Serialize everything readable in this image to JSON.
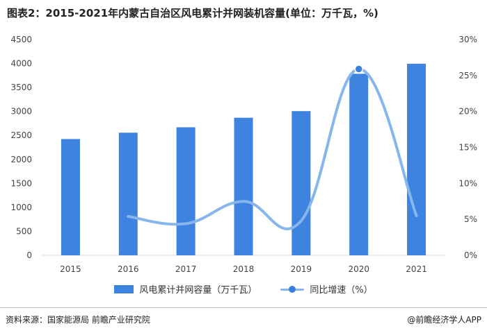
{
  "title": "图表2：2015-2021年内蒙古自治区风电累计并网装机容量(单位：万千瓦，%)",
  "source": "资料来源：国家能源局 前瞻产业研究院",
  "brand": "@前瞻经济学人APP",
  "colors": {
    "bar": "#3f83e0",
    "line": "#86b6ec",
    "marker": "#3a7fdc",
    "axis_text": "#444444",
    "axis_line": "#d9d9d9"
  },
  "chart_data": {
    "type": "bar",
    "categories": [
      "2015",
      "2016",
      "2017",
      "2018",
      "2019",
      "2020",
      "2021"
    ],
    "series": [
      {
        "name": "风电累计并网容量（万千瓦）",
        "type": "bar",
        "axis": "left",
        "values": [
          2425,
          2557,
          2670,
          2869,
          3007,
          3786,
          3996
        ]
      },
      {
        "name": "同比增速（%）",
        "type": "line",
        "axis": "right",
        "values": [
          null,
          5.4,
          4.4,
          7.5,
          4.8,
          25.9,
          5.5
        ],
        "marker_on": [
          "2020"
        ]
      }
    ],
    "yleft": {
      "min": 0,
      "max": 4500,
      "ticks": [
        "0",
        "500",
        "1000",
        "1500",
        "2000",
        "2500",
        "3000",
        "3500",
        "4000",
        "4500"
      ]
    },
    "yright": {
      "min": 0,
      "max": 30,
      "ticks": [
        "0%",
        "5%",
        "10%",
        "15%",
        "20%",
        "25%",
        "30%"
      ]
    },
    "legend_position": "bottom",
    "grid": false
  }
}
